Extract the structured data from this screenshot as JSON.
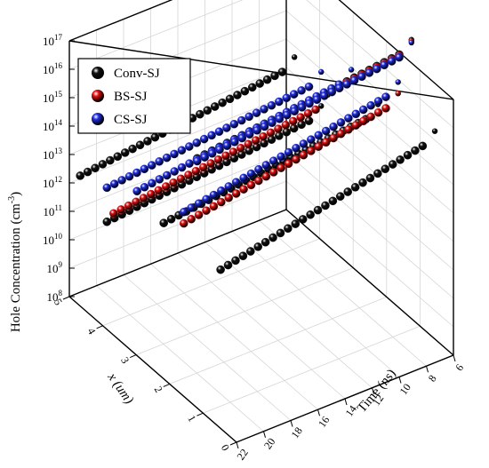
{
  "chart_data": {
    "type": "scatter3d",
    "title": "",
    "zlabel": "Hole Concentration (cm",
    "zlabel_sup": "-3",
    "zlabel_close": ")",
    "xlabel": "x (um)",
    "ylabel": "Time (ns)",
    "x_ticks": [
      "0",
      "1",
      "2",
      "3",
      "4",
      "5"
    ],
    "y_ticks": [
      "6",
      "8",
      "10",
      "12",
      "14",
      "16",
      "18",
      "20",
      "22"
    ],
    "z_ticks": [
      {
        "base": "10",
        "exp": "8"
      },
      {
        "base": "10",
        "exp": "9"
      },
      {
        "base": "10",
        "exp": "10"
      },
      {
        "base": "10",
        "exp": "11"
      },
      {
        "base": "10",
        "exp": "12"
      },
      {
        "base": "10",
        "exp": "13"
      },
      {
        "base": "10",
        "exp": "14"
      },
      {
        "base": "10",
        "exp": "15"
      },
      {
        "base": "10",
        "exp": "16"
      },
      {
        "base": "10",
        "exp": "17"
      }
    ],
    "x_range": [
      0,
      5
    ],
    "y_range": [
      6,
      22
    ],
    "z_log_range": [
      8,
      17
    ],
    "z_scale": "log",
    "legend_placement": "top-left",
    "grid": true,
    "series": [
      {
        "name": "Conv-SJ",
        "color": "#111111",
        "lines": [
          {
            "x": 0.8,
            "z_log_start": 14.6,
            "z_log_end": 13.1,
            "t_start": 6.3,
            "t_end": 21.2
          },
          {
            "x": 2.5,
            "z_log_start": 13.8,
            "z_log_end": 13.0,
            "t_start": 6.3,
            "t_end": 21.2
          },
          {
            "x": 4.2,
            "z_log_start": 12.0,
            "z_log_end": 11.3,
            "t_start": 6.3,
            "t_end": 21.2
          },
          {
            "x": 5.0,
            "z_log_start": 12.9,
            "z_log_end": 12.1,
            "t_start": 6.3,
            "t_end": 21.2
          },
          {
            "x": 1.5,
            "z_log_start": 17.1,
            "z_log_end": 16.3,
            "t_start": 6.3,
            "t_end": 21.2
          }
        ]
      },
      {
        "name": "BS-SJ",
        "color": "#e01010",
        "lines": [
          {
            "x": 1.9,
            "z_log_start": 14.8,
            "z_log_end": 13.6,
            "t_start": 6.3,
            "t_end": 21.2
          },
          {
            "x": 4.0,
            "z_log_start": 12.6,
            "z_log_end": 11.8,
            "t_start": 6.3,
            "t_end": 21.2
          },
          {
            "x": 1.5,
            "z_log_start": 17.05,
            "z_log_end": 16.25,
            "t_start": 6.3,
            "t_end": 21.2
          }
        ]
      },
      {
        "name": "CS-SJ",
        "color": "#1f2de0",
        "lines": [
          {
            "x": 1.9,
            "z_log_start": 15.2,
            "z_log_end": 14.0,
            "t_start": 6.3,
            "t_end": 21.2
          },
          {
            "x": 3.3,
            "z_log_start": 14.2,
            "z_log_end": 13.3,
            "t_start": 6.3,
            "t_end": 21.2
          },
          {
            "x": 4.2,
            "z_log_start": 13.2,
            "z_log_end": 12.5,
            "t_start": 6.3,
            "t_end": 21.2
          },
          {
            "x": 1.5,
            "z_log_start": 17.0,
            "z_log_end": 16.2,
            "t_start": 6.3,
            "t_end": 21.2
          }
        ]
      }
    ]
  }
}
